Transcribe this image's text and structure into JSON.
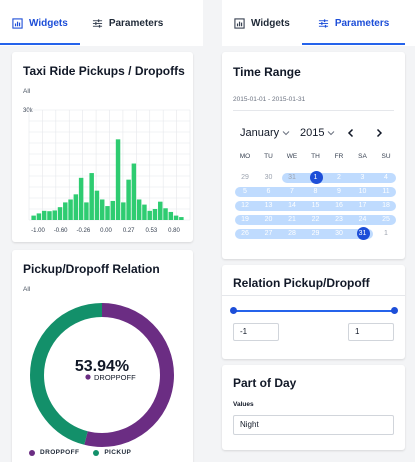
{
  "left_tabs": [
    {
      "label": "Widgets",
      "icon": "chart-icon",
      "active": true
    },
    {
      "label": "Parameters",
      "icon": "sliders-icon",
      "active": false
    }
  ],
  "right_tabs": [
    {
      "label": "Widgets",
      "icon": "chart-icon",
      "active": false
    },
    {
      "label": "Parameters",
      "icon": "sliders-icon",
      "active": true
    }
  ],
  "histogram_widget": {
    "title": "Taxi Ride Pickups / Dropoffs",
    "subtitle": "All"
  },
  "relation_widget": {
    "title": "Pickup/Dropoff Relation",
    "subtitle": "All",
    "center_value": "53.94%",
    "center_label": "DROPPOFF"
  },
  "legend": [
    {
      "label": "DROPPOFF",
      "color": "#6b2d83"
    },
    {
      "label": "PICKUP",
      "color": "#13906a"
    }
  ],
  "time_range": {
    "title": "Time Range",
    "range_text": "2015-01-01 - 2015-01-31",
    "month": "January",
    "year": "2015",
    "weekdays": [
      "MO",
      "TU",
      "WE",
      "TH",
      "FR",
      "SA",
      "SU"
    ],
    "weeks": [
      [
        "29",
        "30",
        "31",
        "1",
        "2",
        "3",
        "4"
      ],
      [
        "5",
        "6",
        "7",
        "8",
        "9",
        "10",
        "11"
      ],
      [
        "12",
        "13",
        "14",
        "15",
        "16",
        "17",
        "18"
      ],
      [
        "19",
        "20",
        "21",
        "22",
        "23",
        "24",
        "25"
      ],
      [
        "26",
        "27",
        "28",
        "29",
        "30",
        "31",
        "1"
      ]
    ]
  },
  "relation_param": {
    "title": "Relation Pickup/Dropoff",
    "min_value": "-1",
    "max_value": "1"
  },
  "part_of_day": {
    "title": "Part of Day",
    "values_label": "Values",
    "value": "Night"
  },
  "chart_data": [
    {
      "type": "bar",
      "title": "Taxi Ride Pickups / Dropoffs",
      "subtitle": "All",
      "y_tick": "30k",
      "x_ticks": [
        "-1.00",
        "-0.60",
        "-0.26",
        "0.00",
        "0.27",
        "0.53",
        "0.80"
      ],
      "xlim": [
        -1.0,
        1.0
      ],
      "ylim": [
        0,
        30000
      ],
      "color": "#2ecc71",
      "values": [
        1200,
        1800,
        2500,
        2400,
        2600,
        3500,
        4800,
        5600,
        7000,
        11500,
        4800,
        12800,
        8000,
        5600,
        3800,
        5200,
        22000,
        4800,
        11000,
        15400,
        5600,
        4200,
        2500,
        3000,
        5000,
        3200,
        2200,
        1200,
        800
      ]
    },
    {
      "type": "pie",
      "title": "Pickup/Dropoff Relation",
      "subtitle": "All",
      "labels": [
        "DROPPOFF",
        "PICKUP"
      ],
      "values": [
        53.94,
        46.06
      ],
      "colors": [
        "#6b2d83",
        "#13906a"
      ]
    }
  ]
}
